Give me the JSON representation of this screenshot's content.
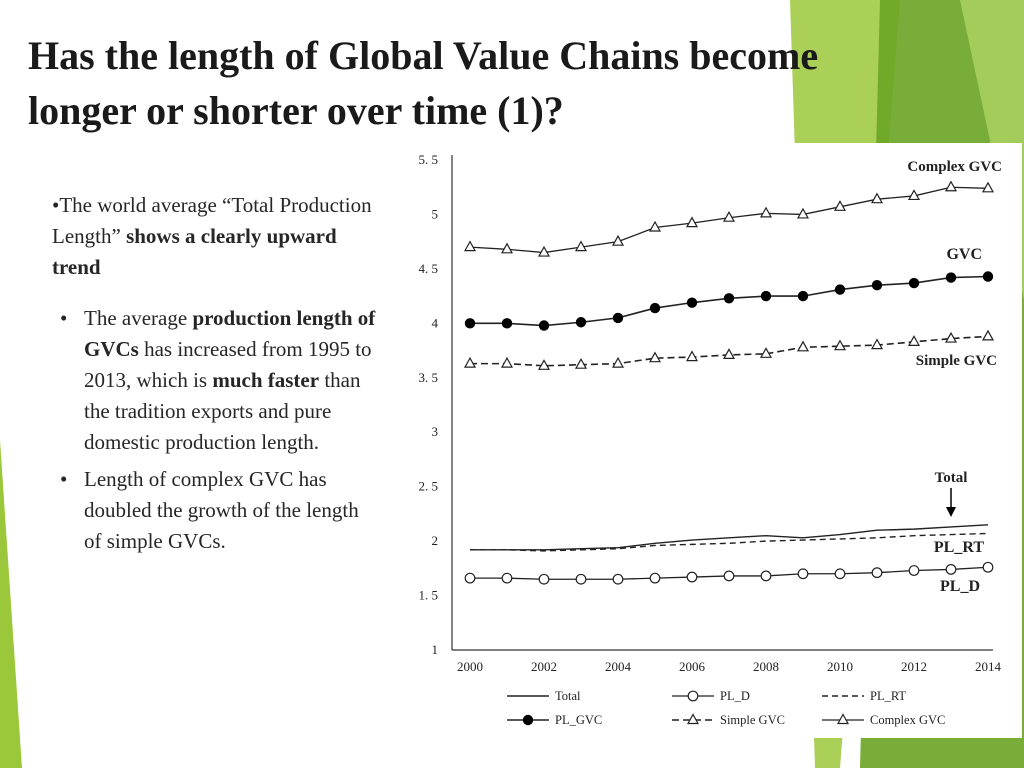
{
  "slide": {
    "title_line1": "Has the length of Global Value Chains become",
    "title_line2": "longer or shorter over time (1)?",
    "bullet1": {
      "prefix": "•The world average “Total Production Length” ",
      "bold": "shows a clearly upward trend"
    },
    "bullet2": {
      "marker": "•",
      "t1": "The average ",
      "b1": "production length of GVCs",
      "t2": " has increased from 1995 to 2013, which is ",
      "b2": "much faster",
      "t3": " than the tradition exports and pure domestic production length."
    },
    "bullet3": {
      "marker": "•",
      "text": "Length of complex GVC has doubled the growth of the length of simple GVCs."
    }
  },
  "theme": {
    "accent_light": "#9bc83a",
    "accent_dark": "#6aa424"
  },
  "chart_data": {
    "type": "line",
    "x": [
      2000,
      2001,
      2002,
      2003,
      2004,
      2005,
      2006,
      2007,
      2008,
      2009,
      2010,
      2011,
      2012,
      2013,
      2014
    ],
    "x_ticks": [
      "2000",
      "2002",
      "2004",
      "2006",
      "2008",
      "2010",
      "2012",
      "2014"
    ],
    "y_ticks": [
      "1",
      "1. 5",
      "2",
      "2. 5",
      "3",
      "3. 5",
      "4",
      "4. 5",
      "5",
      "5. 5"
    ],
    "xlim": [
      2000,
      2014
    ],
    "ylim": [
      1,
      5.5
    ],
    "series": [
      {
        "name": "Total",
        "key": "total",
        "style": "solid-thin",
        "values": [
          1.92,
          1.92,
          1.92,
          1.93,
          1.94,
          1.98,
          2.01,
          2.03,
          2.05,
          2.03,
          2.06,
          2.1,
          2.11,
          2.13,
          2.15
        ]
      },
      {
        "name": "PL_D",
        "key": "pl_d",
        "style": "open-circle",
        "values": [
          1.66,
          1.66,
          1.65,
          1.65,
          1.65,
          1.66,
          1.67,
          1.68,
          1.68,
          1.7,
          1.7,
          1.71,
          1.73,
          1.74,
          1.76
        ]
      },
      {
        "name": "PL_RT",
        "key": "pl_rt",
        "style": "dashed-thin",
        "values": [
          1.92,
          1.92,
          1.91,
          1.92,
          1.93,
          1.96,
          1.97,
          1.98,
          2.0,
          2.01,
          2.02,
          2.03,
          2.05,
          2.06,
          2.07
        ]
      },
      {
        "name": "PL_GVC",
        "key": "pl_gvc",
        "style": "filled-circle",
        "values": [
          4.0,
          4.0,
          3.98,
          4.01,
          4.05,
          4.14,
          4.19,
          4.23,
          4.25,
          4.25,
          4.31,
          4.35,
          4.37,
          4.42,
          4.43
        ]
      },
      {
        "name": "Simple GVC",
        "key": "simple",
        "style": "dashed-triangle",
        "values": [
          3.63,
          3.63,
          3.61,
          3.62,
          3.63,
          3.68,
          3.69,
          3.71,
          3.72,
          3.78,
          3.79,
          3.8,
          3.83,
          3.86,
          3.88
        ]
      },
      {
        "name": "Complex GVC",
        "key": "complex",
        "style": "solid-triangle",
        "values": [
          4.7,
          4.68,
          4.65,
          4.7,
          4.75,
          4.88,
          4.92,
          4.97,
          5.01,
          5.0,
          5.07,
          5.14,
          5.17,
          5.25,
          5.24
        ]
      }
    ],
    "annotations": {
      "complex": "Complex GVC",
      "gvc": "GVC",
      "simple": "Simple GVC",
      "total": "Total",
      "pl_rt": "PL_RT",
      "pl_d": "PL_D"
    },
    "legend_position": "bottom",
    "grid": false
  }
}
